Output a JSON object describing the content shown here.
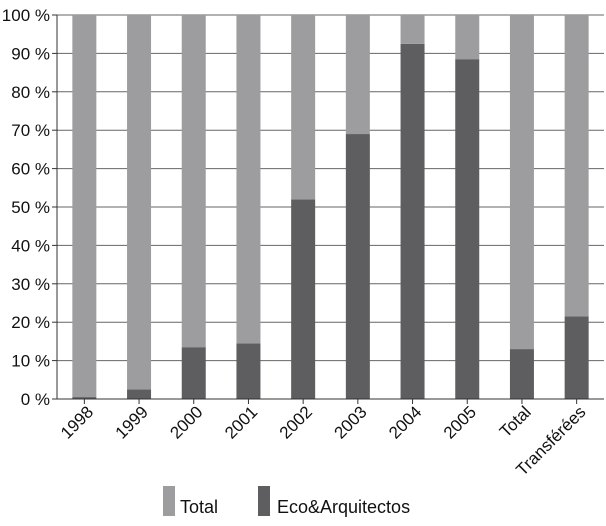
{
  "chart_data": {
    "type": "bar",
    "stacked": true,
    "categories": [
      "1998",
      "1999",
      "2000",
      "2001",
      "2002",
      "2003",
      "2004",
      "2005",
      "Total",
      "Transférées"
    ],
    "series": [
      {
        "name": "Eco&Arquitectos",
        "color": "#5e5e60",
        "values": [
          0.5,
          2.5,
          13.5,
          14.5,
          52,
          69,
          92.5,
          88.5,
          13,
          21.5
        ]
      },
      {
        "name": "Total",
        "color": "#9d9d9f",
        "values": [
          99.5,
          97.5,
          86.5,
          85.5,
          48,
          31,
          7.5,
          11.5,
          87,
          78.5
        ]
      }
    ],
    "y_ticks": [
      "0 %",
      "10 %",
      "20 %",
      "30 %",
      "40 %",
      "50 %",
      "60 %",
      "70 %",
      "80 %",
      "90 %",
      "100 %"
    ],
    "ylim": [
      0,
      100
    ],
    "grid": true,
    "legend_position": "bottom",
    "legend": [
      {
        "name": "Total",
        "color": "#9d9d9f"
      },
      {
        "name": "Eco&Arquitectos",
        "color": "#5e5e60"
      }
    ]
  }
}
